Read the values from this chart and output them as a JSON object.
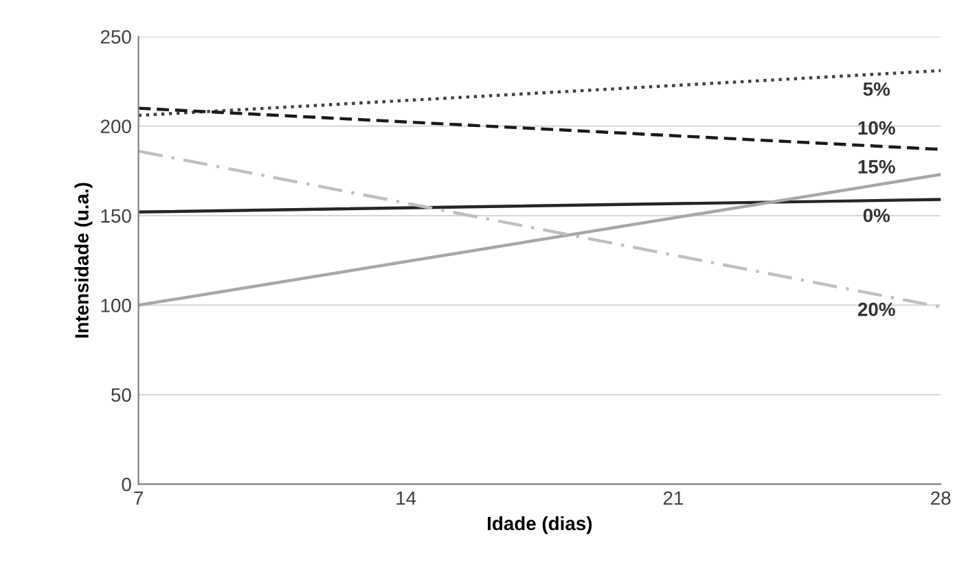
{
  "chart_data": {
    "type": "line",
    "xlabel": "Idade (dias)",
    "ylabel": "Intensidade (u.a.)",
    "x": [
      7,
      28
    ],
    "xlim": [
      7,
      28
    ],
    "xticks": [
      7,
      14,
      21,
      28
    ],
    "ylim": [
      0,
      250
    ],
    "yticks": [
      0,
      50,
      100,
      150,
      200,
      250
    ],
    "grid": "y",
    "legend": false,
    "marker": "none",
    "series": [
      {
        "name": "0%",
        "color": "#262626",
        "values": [
          152,
          159
        ],
        "line_style": "solid"
      },
      {
        "name": "5%",
        "color": "#404040",
        "values": [
          206,
          231
        ],
        "line_style": "dotted"
      },
      {
        "name": "10%",
        "color": "#1a1a1a",
        "values": [
          210,
          187
        ],
        "line_style": "dashed"
      },
      {
        "name": "15%",
        "color": "#a6a6a6",
        "values": [
          100,
          173
        ],
        "line_style": "solid"
      },
      {
        "name": "20%",
        "color": "#bfbfbf",
        "values": [
          186,
          99
        ],
        "line_style": "dashdot"
      }
    ]
  }
}
